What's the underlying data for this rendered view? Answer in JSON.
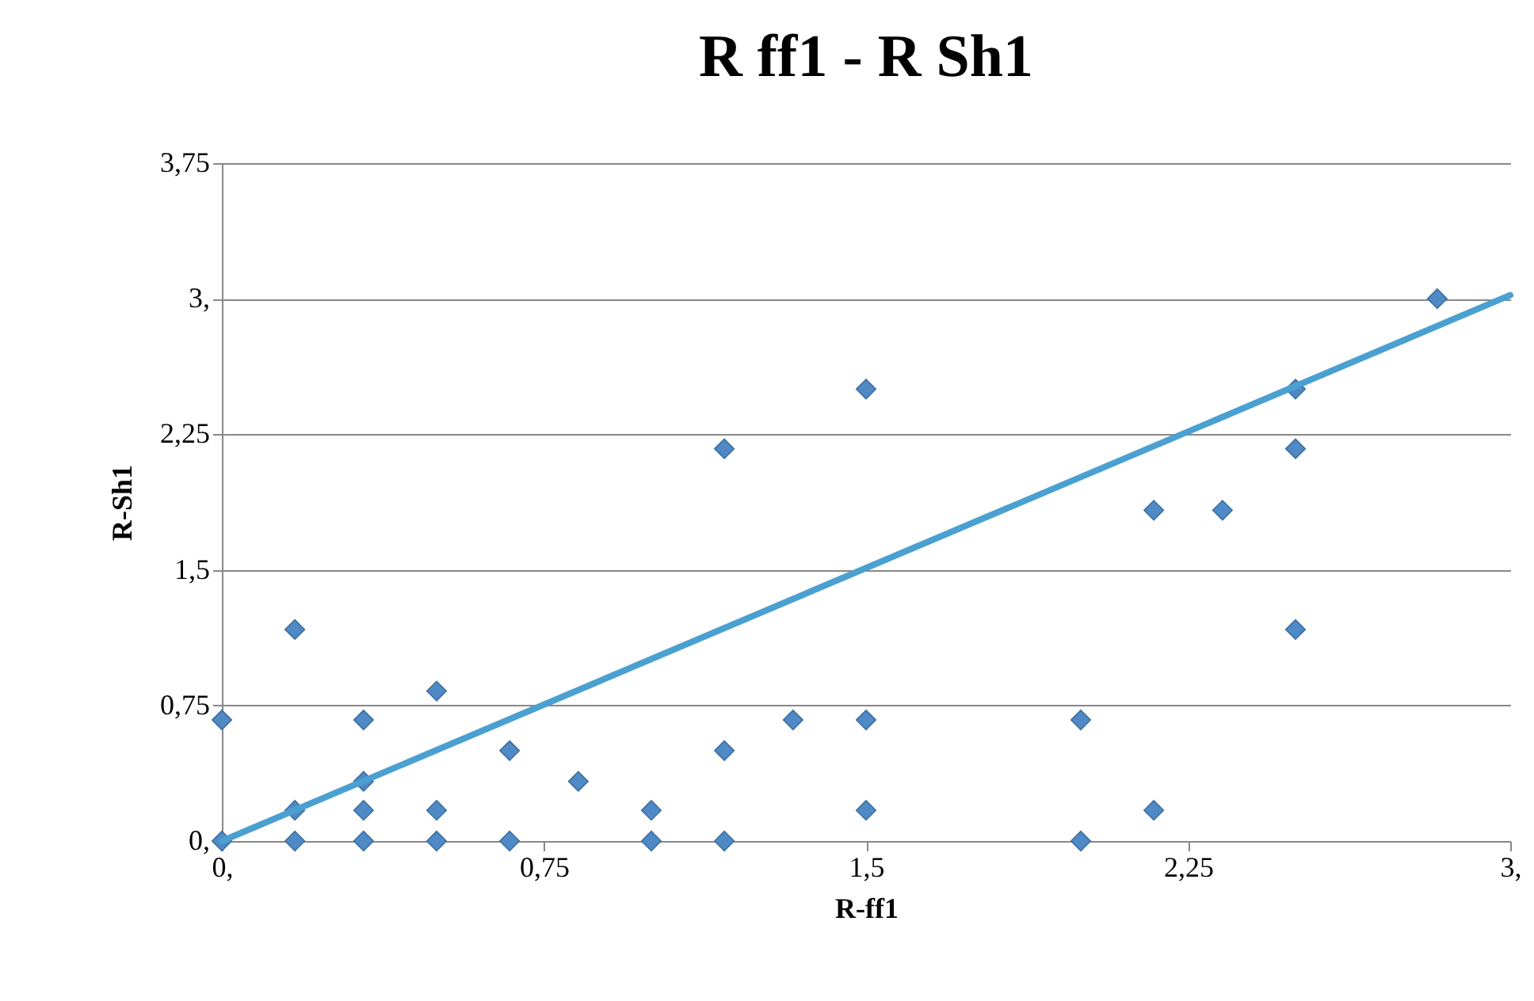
{
  "chart_data": {
    "type": "scatter",
    "title": "R ff1 - R Sh1",
    "xlabel": "R-ff1",
    "ylabel": "R-Sh1",
    "xlim": [
      0,
      3
    ],
    "ylim": [
      0,
      3.75
    ],
    "xticks": [
      {
        "value": 0,
        "label": "0,"
      },
      {
        "value": 0.75,
        "label": "0,75"
      },
      {
        "value": 1.5,
        "label": "1,5"
      },
      {
        "value": 2.25,
        "label": "2,25"
      },
      {
        "value": 3,
        "label": "3,"
      }
    ],
    "yticks": [
      {
        "value": 0,
        "label": "0,"
      },
      {
        "value": 0.75,
        "label": "0,75"
      },
      {
        "value": 1.5,
        "label": "1,5"
      },
      {
        "value": 2.25,
        "label": "2,25"
      },
      {
        "value": 3,
        "label": "3,"
      },
      {
        "value": 3.75,
        "label": "3,75"
      }
    ],
    "grid": "y",
    "marker": "diamond",
    "series": [
      {
        "color": "#4f8ac6",
        "x": [
          0,
          0,
          0.17,
          0.17,
          0.17,
          0.33,
          0.33,
          0.33,
          0.33,
          0.5,
          0.5,
          0.5,
          0.67,
          0.67,
          0.83,
          1.0,
          1.0,
          1.17,
          1.17,
          1.17,
          1.33,
          1.5,
          1.5,
          1.5,
          2.0,
          2.0,
          2.17,
          2.17,
          2.33,
          2.5,
          2.5,
          2.5,
          2.83
        ],
        "values": [
          0,
          0.67,
          0,
          0.17,
          1.17,
          0,
          0.17,
          0.33,
          0.67,
          0,
          0.17,
          0.83,
          0,
          0.5,
          0.33,
          0,
          0.17,
          0,
          0.5,
          2.17,
          0.67,
          0.17,
          0.67,
          2.5,
          0,
          0.67,
          0.17,
          1.83,
          1.83,
          1.17,
          2.17,
          2.5,
          3.0
        ]
      },
      {
        "type": "line",
        "marker": "none",
        "color": "#4aa0d0",
        "x": [
          0,
          3
        ],
        "values": [
          0,
          3.02
        ]
      }
    ]
  }
}
